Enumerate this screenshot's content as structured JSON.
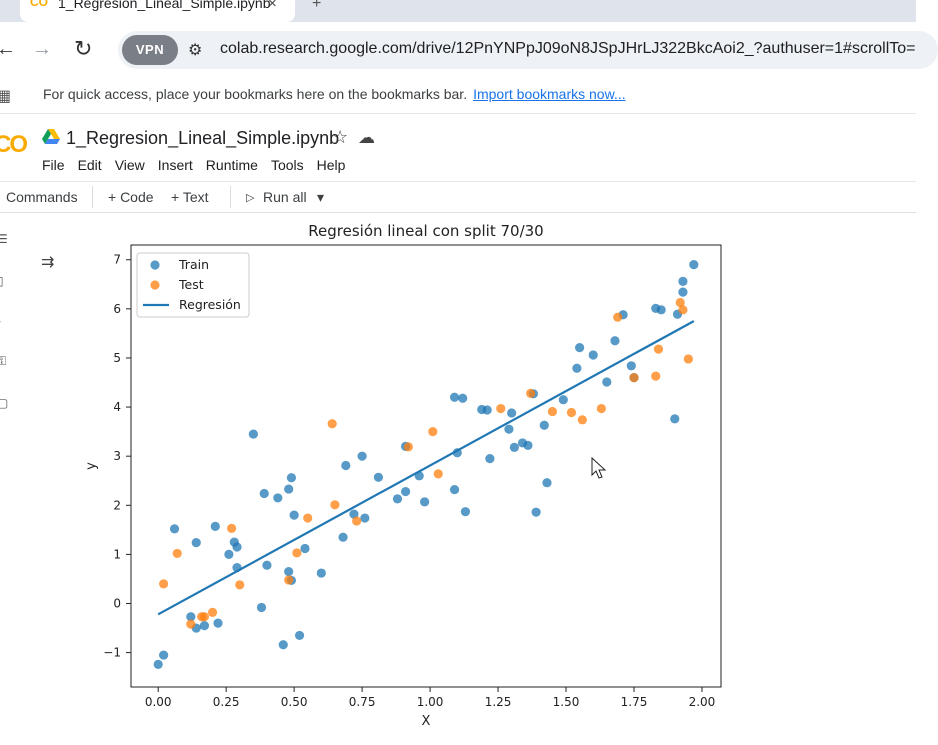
{
  "browser": {
    "tab": {
      "title": "1_Regresion_Lineal_Simple.ipynb",
      "favicon": "CO",
      "close_icon": "×"
    },
    "new_tab_icon": "+",
    "nav": {
      "back_icon": "←",
      "forward_icon": "→",
      "reload_icon": "↻"
    },
    "vpn_label": "VPN",
    "site_info_icon": "⚙",
    "url": "colab.research.google.com/drive/12PnYNPpJ09oN8JSpJHrLJ322BkcAoi2_?authuser=1#scrollTo="
  },
  "bookmarks_bar": {
    "apps_icon": "▦",
    "message": "For quick access, place your bookmarks here on the bookmarks bar.",
    "import_link": "Import bookmarks now..."
  },
  "colab": {
    "logo": "CO",
    "notebook_title": "1_Regresion_Lineal_Simple.ipynb",
    "star_icon": "☆",
    "cloud_icon": "☁",
    "menu": [
      "File",
      "Edit",
      "View",
      "Insert",
      "Runtime",
      "Tools",
      "Help"
    ],
    "toolbar": {
      "commands": "Commands",
      "code": "+ Code",
      "text": "+ Text",
      "run_all": "Run all",
      "run_icon": "▷",
      "dropdown_icon": "▾"
    },
    "output_toggle_icon": "⇉"
  },
  "chart_data": {
    "type": "scatter",
    "title": "Regresión lineal con split 70/30",
    "xlabel": "X",
    "ylabel": "y",
    "xlim": [
      -0.1,
      2.07
    ],
    "ylim": [
      -1.7,
      7.3
    ],
    "xticks": [
      "0.00",
      "0.25",
      "0.50",
      "0.75",
      "1.00",
      "1.25",
      "1.50",
      "1.75",
      "2.00"
    ],
    "xtick_values": [
      0,
      0.25,
      0.5,
      0.75,
      1.0,
      1.25,
      1.5,
      1.75,
      2.0
    ],
    "yticks": [
      "−1",
      "0",
      "1",
      "2",
      "3",
      "4",
      "5",
      "6",
      "7"
    ],
    "ytick_values": [
      -1,
      0,
      1,
      2,
      3,
      4,
      5,
      6,
      7
    ],
    "legend": {
      "placement": "upper-left",
      "entries": [
        "Train",
        "Test",
        "Regresión"
      ]
    },
    "colors": {
      "train": "#1f77b4",
      "test": "#ff7f0e",
      "line": "#1f77b4"
    },
    "series": [
      {
        "name": "Train",
        "points": [
          [
            0.0,
            -1.24
          ],
          [
            0.02,
            -1.05
          ],
          [
            0.06,
            1.52
          ],
          [
            0.12,
            -0.27
          ],
          [
            0.14,
            -0.5
          ],
          [
            0.14,
            1.24
          ],
          [
            0.17,
            -0.45
          ],
          [
            0.21,
            1.57
          ],
          [
            0.22,
            -0.4
          ],
          [
            0.26,
            1.0
          ],
          [
            0.28,
            1.25
          ],
          [
            0.29,
            1.15
          ],
          [
            0.29,
            0.73
          ],
          [
            0.35,
            3.45
          ],
          [
            0.38,
            -0.08
          ],
          [
            0.39,
            2.24
          ],
          [
            0.4,
            0.78
          ],
          [
            0.44,
            2.15
          ],
          [
            0.46,
            -0.84
          ],
          [
            0.48,
            2.33
          ],
          [
            0.48,
            0.65
          ],
          [
            0.49,
            0.47
          ],
          [
            0.49,
            2.56
          ],
          [
            0.5,
            1.8
          ],
          [
            0.52,
            -0.65
          ],
          [
            0.54,
            1.12
          ],
          [
            0.6,
            0.62
          ],
          [
            0.68,
            1.35
          ],
          [
            0.69,
            2.81
          ],
          [
            0.72,
            1.82
          ],
          [
            0.75,
            3.0
          ],
          [
            0.76,
            1.74
          ],
          [
            0.81,
            2.57
          ],
          [
            0.88,
            2.13
          ],
          [
            0.91,
            3.2
          ],
          [
            0.91,
            2.28
          ],
          [
            0.96,
            2.6
          ],
          [
            0.98,
            2.07
          ],
          [
            1.09,
            2.32
          ],
          [
            1.09,
            4.2
          ],
          [
            1.1,
            3.07
          ],
          [
            1.12,
            4.18
          ],
          [
            1.13,
            1.87
          ],
          [
            1.19,
            3.95
          ],
          [
            1.21,
            3.94
          ],
          [
            1.22,
            2.95
          ],
          [
            1.29,
            3.55
          ],
          [
            1.3,
            3.88
          ],
          [
            1.31,
            3.18
          ],
          [
            1.34,
            3.27
          ],
          [
            1.36,
            3.22
          ],
          [
            1.38,
            4.27
          ],
          [
            1.39,
            1.86
          ],
          [
            1.42,
            3.63
          ],
          [
            1.43,
            2.46
          ],
          [
            1.49,
            4.15
          ],
          [
            1.54,
            4.79
          ],
          [
            1.55,
            5.21
          ],
          [
            1.6,
            5.06
          ],
          [
            1.65,
            4.51
          ],
          [
            1.68,
            5.35
          ],
          [
            1.71,
            5.88
          ],
          [
            1.74,
            4.84
          ],
          [
            1.75,
            4.6
          ],
          [
            1.83,
            6.01
          ],
          [
            1.85,
            5.98
          ],
          [
            1.9,
            3.76
          ],
          [
            1.91,
            5.89
          ],
          [
            1.93,
            6.34
          ],
          [
            1.93,
            6.56
          ],
          [
            1.97,
            6.9
          ]
        ]
      },
      {
        "name": "Test",
        "points": [
          [
            0.02,
            0.4
          ],
          [
            0.07,
            1.02
          ],
          [
            0.12,
            -0.42
          ],
          [
            0.16,
            -0.27
          ],
          [
            0.17,
            -0.27
          ],
          [
            0.2,
            -0.18
          ],
          [
            0.27,
            1.53
          ],
          [
            0.3,
            0.38
          ],
          [
            0.48,
            0.48
          ],
          [
            0.51,
            1.03
          ],
          [
            0.55,
            1.74
          ],
          [
            0.64,
            3.66
          ],
          [
            0.65,
            2.01
          ],
          [
            0.73,
            1.68
          ],
          [
            0.92,
            3.19
          ],
          [
            1.01,
            3.5
          ],
          [
            1.03,
            2.64
          ],
          [
            1.26,
            3.97
          ],
          [
            1.37,
            4.28
          ],
          [
            1.45,
            3.91
          ],
          [
            1.52,
            3.89
          ],
          [
            1.56,
            3.74
          ],
          [
            1.63,
            3.97
          ],
          [
            1.69,
            5.83
          ],
          [
            1.75,
            4.6
          ],
          [
            1.83,
            4.63
          ],
          [
            1.84,
            5.18
          ],
          [
            1.92,
            6.13
          ],
          [
            1.93,
            5.98
          ],
          [
            1.95,
            4.98
          ]
        ]
      },
      {
        "name": "Regresión",
        "line": [
          [
            0.0,
            -0.22
          ],
          [
            1.97,
            5.75
          ]
        ]
      }
    ]
  }
}
